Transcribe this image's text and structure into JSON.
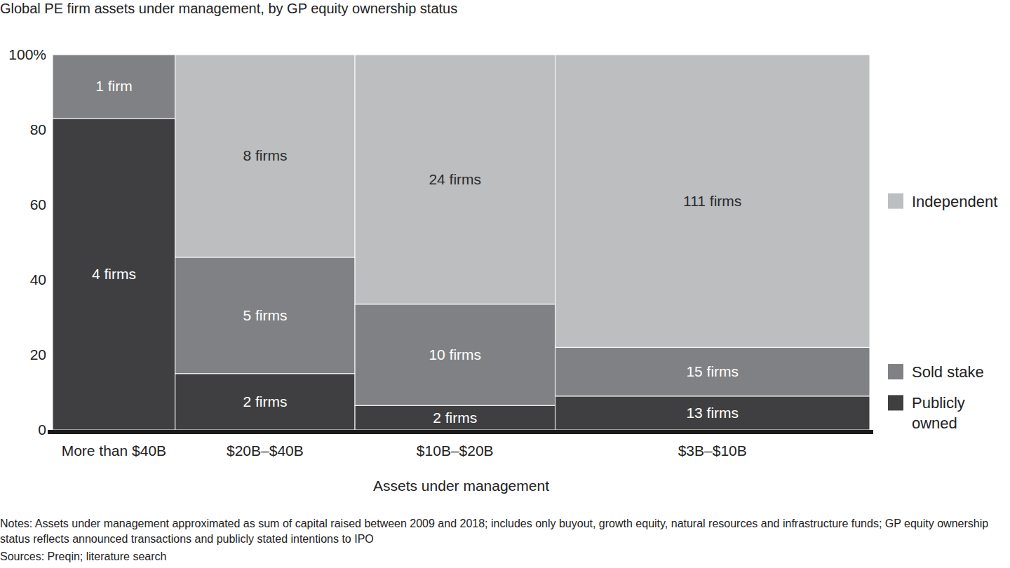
{
  "chart_data": {
    "type": "marimekko",
    "title": "Global PE firm assets under management, by GP equity ownership status",
    "x_label": "Assets under management",
    "categories": [
      "More than $40B",
      "$20B–$40B",
      "$10B–$20B",
      "$3B–$10B"
    ],
    "widths": [
      15,
      22,
      24.5,
      38.5
    ],
    "series": [
      {
        "name": "Publicly owned",
        "color": "#3f3f41",
        "values": [
          83,
          15,
          6.5,
          9
        ],
        "segment_labels": [
          "4 firms",
          "2 firms",
          "2 firms",
          "13 firms"
        ]
      },
      {
        "name": "Sold stake",
        "color": "#808184",
        "values": [
          17,
          31,
          27,
          13
        ],
        "segment_labels": [
          "1 firm",
          "5 firms",
          "10 firms",
          "15 firms"
        ]
      },
      {
        "name": "Independent",
        "color": "#bcbec0",
        "values": [
          0,
          54,
          66.5,
          78
        ],
        "segment_labels": [
          null,
          "8 firms",
          "24 firms",
          "111 firms"
        ]
      }
    ],
    "ylim": [
      0,
      100
    ],
    "yticks": [
      0,
      20,
      40,
      60,
      80,
      {
        "value": 100,
        "label": "100%"
      }
    ],
    "stacked": true,
    "grid": false,
    "legend": "right",
    "notes": "Notes: Assets under management approximated as sum of capital raised between 2009 and 2018; includes only buyout, growth equity, natural resources and infrastructure funds; GP equity ownership status reflects announced transactions and publicly stated intentions to IPO",
    "sources": "Sources: Preqin; literature search"
  }
}
